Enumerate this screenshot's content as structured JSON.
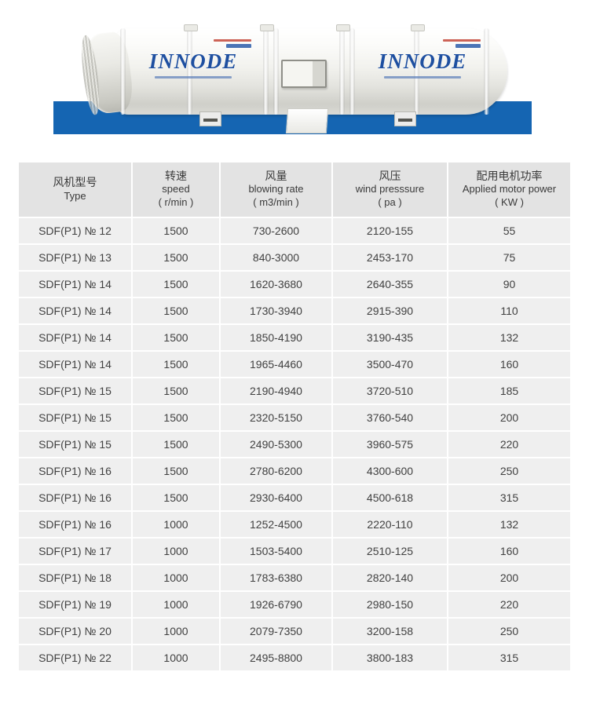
{
  "page": {
    "background": "#ffffff"
  },
  "hero": {
    "brand_left": "INNODE",
    "brand_right": "INNODE",
    "brand_color": "#1e4fa0",
    "blue_bar_color": "#1565b2",
    "photo_description": "white cylindrical tunnel ventilation fan"
  },
  "table": {
    "header_bg": "#e3e3e3",
    "row_bg": "#efefef",
    "column_keys": [
      "type",
      "speed",
      "blowing_rate",
      "wind_pressure",
      "motor_power"
    ],
    "header": [
      {
        "zh": "风机型号",
        "en": "Type",
        "unit": ""
      },
      {
        "zh": "转速",
        "en": "speed",
        "unit": "( r/min )"
      },
      {
        "zh": "风量",
        "en": "blowing rate",
        "unit": "( m3/min )"
      },
      {
        "zh": "风压",
        "en": "wind presssure",
        "unit": "( pa )"
      },
      {
        "zh": "配用电机功率",
        "en": "Applied motor power",
        "unit": "( KW )"
      }
    ],
    "rows": [
      [
        "SDF(P1) № 12",
        "1500",
        "730-2600",
        "2120-155",
        "55"
      ],
      [
        "SDF(P1) № 13",
        "1500",
        "840-3000",
        "2453-170",
        "75"
      ],
      [
        "SDF(P1) № 14",
        "1500",
        "1620-3680",
        "2640-355",
        "90"
      ],
      [
        "SDF(P1) № 14",
        "1500",
        "1730-3940",
        "2915-390",
        "110"
      ],
      [
        "SDF(P1) № 14",
        "1500",
        "1850-4190",
        "3190-435",
        "132"
      ],
      [
        "SDF(P1) № 14",
        "1500",
        "1965-4460",
        "3500-470",
        "160"
      ],
      [
        "SDF(P1) № 15",
        "1500",
        "2190-4940",
        "3720-510",
        "185"
      ],
      [
        "SDF(P1) № 15",
        "1500",
        "2320-5150",
        "3760-540",
        "200"
      ],
      [
        "SDF(P1) № 15",
        "1500",
        "2490-5300",
        "3960-575",
        "220"
      ],
      [
        "SDF(P1) № 16",
        "1500",
        "2780-6200",
        "4300-600",
        "250"
      ],
      [
        "SDF(P1) № 16",
        "1500",
        "2930-6400",
        "4500-618",
        "315"
      ],
      [
        "SDF(P1) № 16",
        "1000",
        "1252-4500",
        "2220-110",
        "132"
      ],
      [
        "SDF(P1) № 17",
        "1000",
        "1503-5400",
        "2510-125",
        "160"
      ],
      [
        "SDF(P1) № 18",
        "1000",
        "1783-6380",
        "2820-140",
        "200"
      ],
      [
        "SDF(P1) № 19",
        "1000",
        "1926-6790",
        "2980-150",
        "220"
      ],
      [
        "SDF(P1) № 20",
        "1000",
        "2079-7350",
        "3200-158",
        "250"
      ],
      [
        "SDF(P1) № 22",
        "1000",
        "2495-8800",
        "3800-183",
        "315"
      ]
    ]
  }
}
